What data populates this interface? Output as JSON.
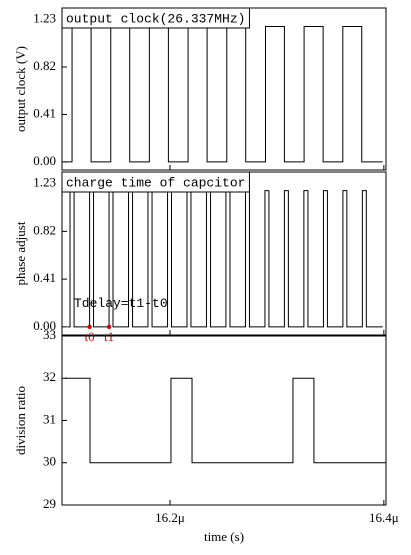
{
  "chart_data": [
    {
      "type": "line",
      "title": "output clock(26.337MHz)",
      "y_label": "output clock (V)",
      "color": "#000000",
      "xlim": [
        1.6099e-05,
        1.6402e-05
      ],
      "ylim": [
        -0.07,
        1.33
      ],
      "yticks": [
        {
          "value": 0,
          "label": "0.00"
        },
        0.41,
        0.82,
        1.23
      ],
      "x": [
        1.6101e-05,
        1.61084e-05,
        1.61084e-05,
        1.61262e-05,
        1.61262e-05,
        1.61446e-05,
        1.61446e-05,
        1.61623e-05,
        1.61623e-05,
        1.61807e-05,
        1.61807e-05,
        1.61985e-05,
        1.61985e-05,
        1.62169e-05,
        1.62169e-05,
        1.62347e-05,
        1.62347e-05,
        1.62531e-05,
        1.62531e-05,
        1.62708e-05,
        1.62708e-05,
        1.62893e-05,
        1.62893e-05,
        1.6307e-05,
        1.6307e-05,
        1.63254e-05,
        1.63254e-05,
        1.63432e-05,
        1.63432e-05,
        1.63616e-05,
        1.63616e-05,
        1.63793e-05,
        1.63793e-05,
        1.6399e-05
      ],
      "values": [
        0,
        0,
        1.17,
        1.17,
        0,
        0,
        1.17,
        1.17,
        0,
        0,
        1.17,
        1.17,
        0,
        0,
        1.17,
        1.17,
        0,
        0,
        1.17,
        1.17,
        0,
        0,
        1.17,
        1.17,
        0,
        0,
        1.17,
        1.17,
        0,
        0,
        1.17,
        1.17,
        0,
        0
      ]
    },
    {
      "type": "line",
      "title": "charge time of capcitor",
      "y_label": "phase adjust",
      "color": "#000000",
      "annotation": "Tdelay=t1-t0",
      "xlim": [
        1.6099e-05,
        1.6402e-05
      ],
      "ylim": [
        -0.07,
        1.33
      ],
      "yticks": [
        {
          "value": 0,
          "label": "0.00"
        },
        0.41,
        0.82,
        1.23
      ],
      "x": [
        1.6104e-05,
        1.61065e-05,
        1.61065e-05,
        1.61103e-05,
        1.61103e-05,
        1.61248e-05,
        1.61248e-05,
        1.61285e-05,
        1.61285e-05,
        1.6143e-05,
        1.6143e-05,
        1.61467e-05,
        1.61467e-05,
        1.61612e-05,
        1.61612e-05,
        1.6165e-05,
        1.6165e-05,
        1.61794e-05,
        1.61794e-05,
        1.61832e-05,
        1.61832e-05,
        1.61977e-05,
        1.61977e-05,
        1.62014e-05,
        1.62014e-05,
        1.62159e-05,
        1.62159e-05,
        1.62196e-05,
        1.62196e-05,
        1.62341e-05,
        1.62341e-05,
        1.62379e-05,
        1.62379e-05,
        1.62523e-05,
        1.62523e-05,
        1.62561e-05,
        1.62561e-05,
        1.62706e-05,
        1.62706e-05,
        1.62743e-05,
        1.62743e-05,
        1.62888e-05,
        1.62888e-05,
        1.62925e-05,
        1.62925e-05,
        1.6307e-05,
        1.6307e-05,
        1.63107e-05,
        1.63107e-05,
        1.63252e-05,
        1.63252e-05,
        1.6329e-05,
        1.6329e-05,
        1.63435e-05,
        1.63435e-05,
        1.63472e-05,
        1.63472e-05,
        1.63617e-05,
        1.63617e-05,
        1.63654e-05,
        1.63654e-05,
        1.63799e-05,
        1.63799e-05,
        1.63836e-05,
        1.63836e-05,
        1.6399e-05
      ],
      "values": [
        0,
        0,
        1.17,
        1.17,
        0,
        0,
        1.17,
        1.17,
        0,
        0,
        1.17,
        1.17,
        0,
        0,
        1.17,
        1.17,
        0,
        0,
        1.17,
        1.17,
        0,
        0,
        1.17,
        1.17,
        0,
        0,
        1.17,
        1.17,
        0,
        0,
        1.17,
        1.17,
        0,
        0,
        1.17,
        1.17,
        0,
        0,
        1.17,
        1.17,
        0,
        0,
        1.17,
        1.17,
        0,
        0,
        1.17,
        1.17,
        0,
        0,
        1.17,
        1.17,
        0,
        0,
        1.17,
        1.17,
        0,
        0,
        1.17,
        1.17,
        0,
        0,
        1.17,
        1.17,
        0,
        0
      ],
      "markers": {
        "x": [
          1.61248e-05,
          1.6143e-05
        ],
        "values": [
          0,
          0
        ],
        "labels": [
          "t0",
          "t1"
        ],
        "color": "#e00000"
      }
    },
    {
      "type": "line",
      "y_label": "division ratio",
      "x_label": "time (s)",
      "color": "#000000",
      "xlim": [
        1.6099e-05,
        1.6402e-05
      ],
      "ylim": [
        29,
        33
      ],
      "yticks": [
        29,
        30,
        31,
        32,
        33
      ],
      "xticks": [
        {
          "value": 1.62e-05,
          "label": "16.2μ"
        },
        {
          "value": 1.64e-05,
          "label": "16.4μ"
        }
      ],
      "x": [
        1.61019e-05,
        1.61252e-05,
        1.61252e-05,
        1.62009e-05,
        1.62009e-05,
        1.62206e-05,
        1.62206e-05,
        1.6315e-05,
        1.6315e-05,
        1.63346e-05,
        1.63346e-05,
        1.64019e-05
      ],
      "values": [
        32,
        32,
        30,
        30,
        32,
        32,
        30,
        30,
        32,
        32,
        30,
        30
      ]
    }
  ]
}
